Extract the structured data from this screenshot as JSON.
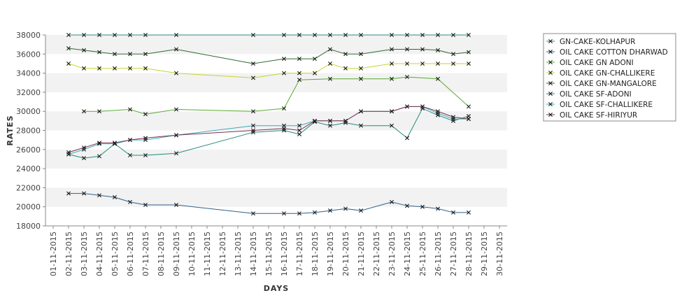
{
  "chart_data": {
    "type": "line",
    "xlabel": "DAYS",
    "ylabel": "RATES",
    "ylim": [
      18000,
      38000
    ],
    "y_ticks": [
      18000,
      20000,
      22000,
      24000,
      26000,
      28000,
      30000,
      32000,
      34000,
      36000,
      38000
    ],
    "x_ticks": [
      "01-11-2015",
      "02-11-2015",
      "03-11-2015",
      "04-11-2015",
      "05-11-2015",
      "06-11-2015",
      "07-11-2015",
      "08-11-2015",
      "09-11-2015",
      "10-11-2015",
      "11-11-2015",
      "12-11-2015",
      "13-11-2015",
      "14-11-2015",
      "15-11-2015",
      "16-11-2015",
      "17-11-2015",
      "18-11-2015",
      "19-11-2015",
      "20-11-2015",
      "21-11-2015",
      "22-11-2015",
      "23-11-2015",
      "24-11-2015",
      "25-11-2015",
      "26-11-2015",
      "27-11-2015",
      "28-11-2015",
      "29-11-2015",
      "30-11-2015"
    ],
    "grid": "alternating horizontal bands",
    "legend_position": "right",
    "series": [
      {
        "name": "GN-CAKE-KOLHAPUR",
        "color": "#2e8b7a",
        "x": [
          "02-11-2015",
          "03-11-2015",
          "04-11-2015",
          "05-11-2015",
          "06-11-2015",
          "07-11-2015",
          "09-11-2015",
          "14-11-2015",
          "16-11-2015",
          "17-11-2015",
          "18-11-2015",
          "19-11-2015",
          "20-11-2015",
          "21-11-2015",
          "23-11-2015",
          "24-11-2015",
          "25-11-2015",
          "26-11-2015",
          "27-11-2015",
          "28-11-2015"
        ],
        "values": [
          38000,
          38000,
          38000,
          38000,
          38000,
          38000,
          38000,
          38000,
          38000,
          38000,
          38000,
          38000,
          38000,
          38000,
          38000,
          38000,
          38000,
          38000,
          38000,
          38000
        ]
      },
      {
        "name": "OIL CAKE COTTON DHARWAD",
        "color": "#2d5f8a",
        "x": [
          "02-11-2015",
          "03-11-2015",
          "04-11-2015",
          "05-11-2015",
          "06-11-2015",
          "07-11-2015",
          "09-11-2015",
          "14-11-2015",
          "16-11-2015",
          "17-11-2015",
          "18-11-2015",
          "19-11-2015",
          "20-11-2015",
          "21-11-2015",
          "23-11-2015",
          "24-11-2015",
          "25-11-2015",
          "26-11-2015",
          "27-11-2015",
          "28-11-2015"
        ],
        "values": [
          21400,
          21400,
          21200,
          21000,
          20500,
          20200,
          20200,
          19300,
          19300,
          19300,
          19400,
          19600,
          19800,
          19600,
          20500,
          20100,
          20000,
          19800,
          19400,
          19400
        ]
      },
      {
        "name": "OIL CAKE GN ADONI",
        "color": "#5aa832",
        "x": [
          "03-11-2015",
          "04-11-2015",
          "06-11-2015",
          "07-11-2015",
          "09-11-2015",
          "14-11-2015",
          "16-11-2015",
          "17-11-2015",
          "19-11-2015",
          "21-11-2015",
          "23-11-2015",
          "24-11-2015",
          "26-11-2015",
          "28-11-2015"
        ],
        "values": [
          30000,
          30000,
          30200,
          29700,
          30200,
          30000,
          30300,
          33300,
          33400,
          33400,
          33400,
          33600,
          33400,
          30500
        ]
      },
      {
        "name": "OIL CAKE GN-CHALLIKERE",
        "color": "#c8d42e",
        "x": [
          "02-11-2015",
          "03-11-2015",
          "04-11-2015",
          "05-11-2015",
          "06-11-2015",
          "07-11-2015",
          "09-11-2015",
          "14-11-2015",
          "16-11-2015",
          "17-11-2015",
          "18-11-2015",
          "19-11-2015",
          "20-11-2015",
          "21-11-2015",
          "23-11-2015",
          "24-11-2015",
          "25-11-2015",
          "26-11-2015",
          "27-11-2015",
          "28-11-2015"
        ],
        "values": [
          35000,
          34500,
          34500,
          34500,
          34500,
          34500,
          34000,
          33500,
          34000,
          34000,
          34000,
          35000,
          34500,
          34500,
          35000,
          35000,
          35000,
          35000,
          35000,
          35000
        ]
      },
      {
        "name": "OIL CAKE GN-MANGALORE",
        "color": "#2f6a2f",
        "x": [
          "02-11-2015",
          "03-11-2015",
          "04-11-2015",
          "05-11-2015",
          "06-11-2015",
          "07-11-2015",
          "09-11-2015",
          "14-11-2015",
          "16-11-2015",
          "17-11-2015",
          "18-11-2015",
          "19-11-2015",
          "20-11-2015",
          "21-11-2015",
          "23-11-2015",
          "24-11-2015",
          "25-11-2015",
          "26-11-2015",
          "27-11-2015",
          "28-11-2015"
        ],
        "values": [
          36600,
          36400,
          36200,
          36000,
          36000,
          36000,
          36500,
          35000,
          35500,
          35500,
          35500,
          36500,
          36000,
          36000,
          36500,
          36500,
          36500,
          36400,
          36000,
          36200
        ]
      },
      {
        "name": "OIL CAKE SF-ADONI",
        "color": "#1f8a7a",
        "x": [
          "02-11-2015",
          "03-11-2015",
          "04-11-2015",
          "05-11-2015",
          "06-11-2015",
          "07-11-2015",
          "09-11-2015",
          "14-11-2015",
          "16-11-2015",
          "17-11-2015",
          "18-11-2015",
          "19-11-2015",
          "20-11-2015",
          "21-11-2015",
          "23-11-2015",
          "24-11-2015",
          "25-11-2015",
          "26-11-2015",
          "27-11-2015",
          "28-11-2015"
        ],
        "values": [
          25500,
          25100,
          25300,
          26600,
          25400,
          25400,
          25600,
          27800,
          28000,
          27600,
          28900,
          28500,
          28800,
          28500,
          28500,
          27200,
          30300,
          29600,
          29000,
          29500
        ]
      },
      {
        "name": "OIL CAKE SF-CHALLIKERE",
        "color": "#3aa8b8",
        "x": [
          "02-11-2015",
          "03-11-2015",
          "04-11-2015",
          "05-11-2015",
          "06-11-2015",
          "07-11-2015",
          "09-11-2015",
          "14-11-2015",
          "16-11-2015",
          "17-11-2015",
          "18-11-2015",
          "19-11-2015",
          "20-11-2015",
          "21-11-2015",
          "23-11-2015",
          "24-11-2015",
          "25-11-2015",
          "26-11-2015",
          "27-11-2015",
          "28-11-2015"
        ],
        "values": [
          25500,
          26000,
          26600,
          26600,
          27000,
          27000,
          27500,
          28500,
          28500,
          28500,
          29000,
          29000,
          29000,
          30000,
          30000,
          30500,
          30500,
          29800,
          29200,
          29200
        ]
      },
      {
        "name": "OIL CAKE SF-HIRIYUR",
        "color": "#7a3050",
        "x": [
          "02-11-2015",
          "03-11-2015",
          "04-11-2015",
          "05-11-2015",
          "06-11-2015",
          "07-11-2015",
          "09-11-2015",
          "14-11-2015",
          "16-11-2015",
          "17-11-2015",
          "18-11-2015",
          "19-11-2015",
          "20-11-2015",
          "21-11-2015",
          "23-11-2015",
          "24-11-2015",
          "25-11-2015",
          "26-11-2015",
          "27-11-2015",
          "28-11-2015"
        ],
        "values": [
          25700,
          26200,
          26700,
          26700,
          27000,
          27200,
          27500,
          28000,
          28200,
          28000,
          29000,
          29000,
          29000,
          30000,
          30000,
          30500,
          30500,
          30000,
          29400,
          29200
        ]
      }
    ]
  }
}
